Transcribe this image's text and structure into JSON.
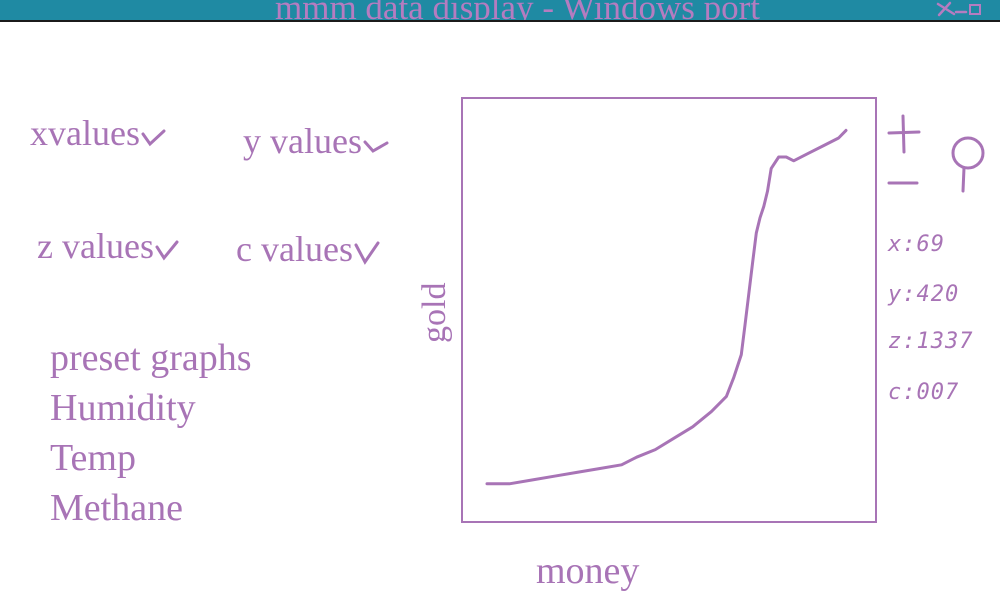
{
  "window": {
    "title": "mmm data display - Windows port",
    "controls": [
      "close-icon",
      "minimize-icon",
      "maximize-icon"
    ]
  },
  "dropdowns": {
    "x": "xvalues",
    "y": "y values",
    "z": "z values",
    "c": "c values"
  },
  "presets": {
    "heading": "preset graphs",
    "items": [
      "Humidity",
      "Temp",
      "Methane"
    ]
  },
  "chart_data": {
    "type": "line",
    "xlabel": "money",
    "ylabel": "gold",
    "xlim": [
      0,
      100
    ],
    "ylim": [
      0,
      100
    ],
    "series": [
      {
        "x": [
          0,
          6,
          12,
          18,
          24,
          30,
          36,
          40,
          45,
          50,
          55,
          60,
          64,
          66,
          68,
          69,
          70,
          71,
          72,
          73,
          74,
          75,
          76,
          78,
          80,
          82,
          86,
          90,
          94,
          96
        ],
        "values": [
          4,
          4,
          5,
          6,
          7,
          8,
          9,
          11,
          13,
          16,
          19,
          23,
          27,
          32,
          38,
          46,
          54,
          62,
          70,
          74,
          77,
          81,
          87,
          90,
          90,
          89,
          91,
          93,
          95,
          97
        ]
      }
    ],
    "color": "#a874b6",
    "grid": false
  },
  "toolbar": {
    "zoom_in": "plus-icon",
    "zoom_out": "minus-icon",
    "search": "magnifier-icon"
  },
  "readouts": {
    "x": "x:69",
    "y": "y:420",
    "z": "z:1337",
    "c": "c:007"
  },
  "colors": {
    "accent": "#a874b6",
    "titlebar": "#1f8aa3"
  }
}
